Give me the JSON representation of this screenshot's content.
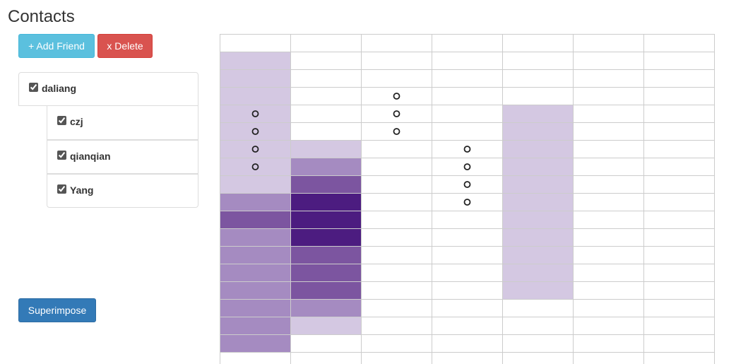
{
  "title": "Contacts",
  "toolbar": {
    "add_label": "+ Add Friend",
    "delete_label": "x Delete",
    "superimpose_label": "Superimpose"
  },
  "contacts": {
    "root": {
      "name": "daliang",
      "checked": true
    },
    "children": [
      {
        "name": "czj",
        "checked": true
      },
      {
        "name": "qianqian",
        "checked": true
      },
      {
        "name": "Yang",
        "checked": true
      }
    ]
  },
  "colors": {
    "level1": "#d4c8e2",
    "level2": "#a58bc1",
    "level3": "#7c55a0",
    "level4": "#4c1c80",
    "grid_line": "#cccccc"
  },
  "schedule": {
    "columns": 7,
    "rows": 19,
    "levels": [
      [
        0,
        0,
        0,
        0,
        0,
        0,
        0
      ],
      [
        1,
        0,
        0,
        0,
        0,
        0,
        0
      ],
      [
        1,
        0,
        0,
        0,
        0,
        0,
        0
      ],
      [
        1,
        0,
        0,
        0,
        0,
        0,
        0
      ],
      [
        1,
        0,
        0,
        0,
        1,
        0,
        0
      ],
      [
        1,
        0,
        0,
        0,
        1,
        0,
        0
      ],
      [
        1,
        1,
        0,
        0,
        1,
        0,
        0
      ],
      [
        1,
        2,
        0,
        0,
        1,
        0,
        0
      ],
      [
        1,
        3,
        0,
        0,
        1,
        0,
        0
      ],
      [
        2,
        4,
        0,
        0,
        1,
        0,
        0
      ],
      [
        3,
        4,
        0,
        0,
        1,
        0,
        0
      ],
      [
        2,
        4,
        0,
        0,
        1,
        0,
        0
      ],
      [
        2,
        3,
        0,
        0,
        1,
        0,
        0
      ],
      [
        2,
        3,
        0,
        0,
        1,
        0,
        0
      ],
      [
        2,
        3,
        0,
        0,
        1,
        0,
        0
      ],
      [
        2,
        2,
        0,
        0,
        0,
        0,
        0
      ],
      [
        2,
        1,
        0,
        0,
        0,
        0,
        0
      ],
      [
        2,
        0,
        0,
        0,
        0,
        0,
        0
      ],
      [
        0,
        0,
        0,
        0,
        0,
        0,
        0
      ]
    ],
    "markers": [
      [
        3,
        2
      ],
      [
        4,
        0
      ],
      [
        4,
        2
      ],
      [
        5,
        0
      ],
      [
        5,
        2
      ],
      [
        6,
        0
      ],
      [
        6,
        3
      ],
      [
        7,
        0
      ],
      [
        7,
        3
      ],
      [
        8,
        3
      ],
      [
        9,
        3
      ]
    ],
    "marker_glyph": "o"
  }
}
